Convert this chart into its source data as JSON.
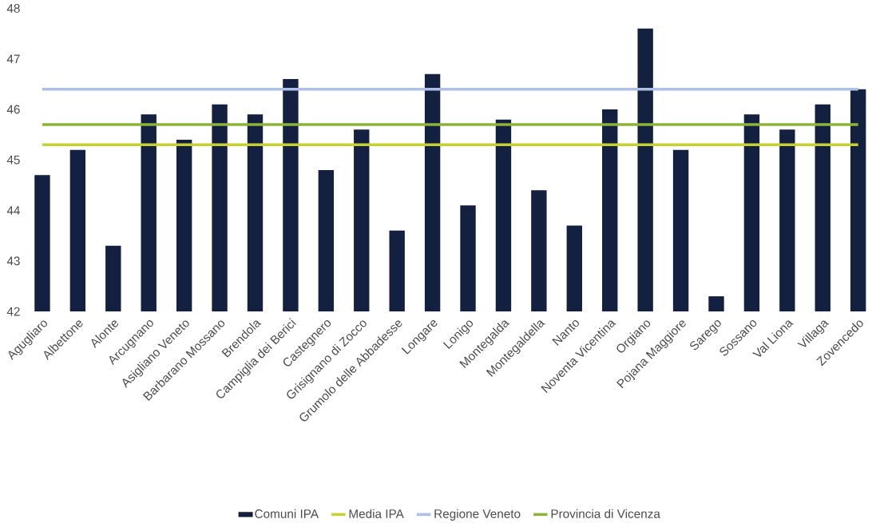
{
  "chart_data": {
    "type": "bar",
    "categories": [
      "Agugliaro",
      "Albettone",
      "Alonte",
      "Arcugnano",
      "Asigliano Veneto",
      "Barbarano Mossano",
      "Brendola",
      "Campiglia dei Berici",
      "Castegnero",
      "Grisignano di Zocco",
      "Grumolo delle Abbadesse",
      "Longare",
      "Lonigo",
      "Montegalda",
      "Montegaldella",
      "Nanto",
      "Noventa Vicentina",
      "Orgiano",
      "Pojana Maggiore",
      "Sarego",
      "Sossano",
      "Val Liona",
      "Villaga",
      "Zovencedo"
    ],
    "series": [
      {
        "name": "Comuni IPA",
        "color": "#14203f",
        "values": [
          44.7,
          45.2,
          43.3,
          45.9,
          45.4,
          46.1,
          45.9,
          46.6,
          44.8,
          45.6,
          43.6,
          46.7,
          44.1,
          45.8,
          44.4,
          43.7,
          46.0,
          47.6,
          45.2,
          42.3,
          45.9,
          45.6,
          46.1,
          46.4
        ]
      },
      {
        "name": "Media IPA",
        "type": "line",
        "color": "#c5d12e",
        "values": [
          45.3,
          45.3,
          45.3,
          45.3,
          45.3,
          45.3,
          45.3,
          45.3,
          45.3,
          45.3,
          45.3,
          45.3,
          45.3,
          45.3,
          45.3,
          45.3,
          45.3,
          45.3,
          45.3,
          45.3,
          45.3,
          45.3,
          45.3,
          45.3
        ]
      },
      {
        "name": "Regione Veneto",
        "type": "line",
        "color": "#adbfe6",
        "values": [
          46.4,
          46.4,
          46.4,
          46.4,
          46.4,
          46.4,
          46.4,
          46.4,
          46.4,
          46.4,
          46.4,
          46.4,
          46.4,
          46.4,
          46.4,
          46.4,
          46.4,
          46.4,
          46.4,
          46.4,
          46.4,
          46.4,
          46.4,
          46.4
        ]
      },
      {
        "name": "Provincia di Vicenza",
        "type": "line",
        "color": "#8db33a",
        "values": [
          45.7,
          45.7,
          45.7,
          45.7,
          45.7,
          45.7,
          45.7,
          45.7,
          45.7,
          45.7,
          45.7,
          45.7,
          45.7,
          45.7,
          45.7,
          45.7,
          45.7,
          45.7,
          45.7,
          45.7,
          45.7,
          45.7,
          45.7,
          45.7
        ]
      }
    ],
    "ylim": [
      42,
      48
    ],
    "yticks": [
      42,
      43,
      44,
      45,
      46,
      47,
      48
    ],
    "legend": "bottom",
    "marker": "none"
  }
}
